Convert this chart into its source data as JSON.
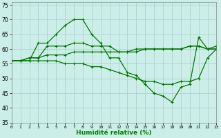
{
  "x": [
    0,
    1,
    2,
    3,
    4,
    5,
    6,
    7,
    8,
    9,
    10,
    11,
    12,
    13,
    14,
    15,
    16,
    17,
    18,
    19,
    20,
    21,
    22,
    23
  ],
  "line1": [
    56,
    56,
    56,
    62,
    62,
    65,
    68,
    70,
    70,
    65,
    62,
    57,
    57,
    52,
    51,
    48,
    45,
    44,
    42,
    47,
    48,
    64,
    60,
    61
  ],
  "line2": [
    56,
    56,
    57,
    57,
    61,
    61,
    61,
    62,
    62,
    61,
    61,
    61,
    59,
    59,
    59,
    60,
    60,
    60,
    60,
    60,
    61,
    61,
    60,
    60
  ],
  "line3": [
    56,
    56,
    57,
    57,
    58,
    58,
    58,
    59,
    59,
    59,
    59,
    59,
    59,
    59,
    60,
    60,
    60,
    60,
    60,
    60,
    61,
    61,
    60,
    60
  ],
  "line4": [
    56,
    56,
    56,
    56,
    56,
    56,
    55,
    55,
    55,
    54,
    54,
    53,
    52,
    51,
    50,
    49,
    49,
    48,
    48,
    49,
    49,
    50,
    57,
    60
  ],
  "xlim": [
    0,
    23
  ],
  "ylim": [
    35,
    76
  ],
  "yticks": [
    35,
    40,
    45,
    50,
    55,
    60,
    65,
    70,
    75
  ],
  "xticks": [
    0,
    1,
    2,
    3,
    4,
    5,
    6,
    7,
    8,
    9,
    10,
    11,
    12,
    13,
    14,
    15,
    16,
    17,
    18,
    19,
    20,
    21,
    22,
    23
  ],
  "xlabel": "Humidité relative (%)",
  "bg_color": "#cceee8",
  "grid_color": "#aacccc",
  "line_color": "#007700",
  "markersize": 2.5,
  "linewidth": 0.9
}
